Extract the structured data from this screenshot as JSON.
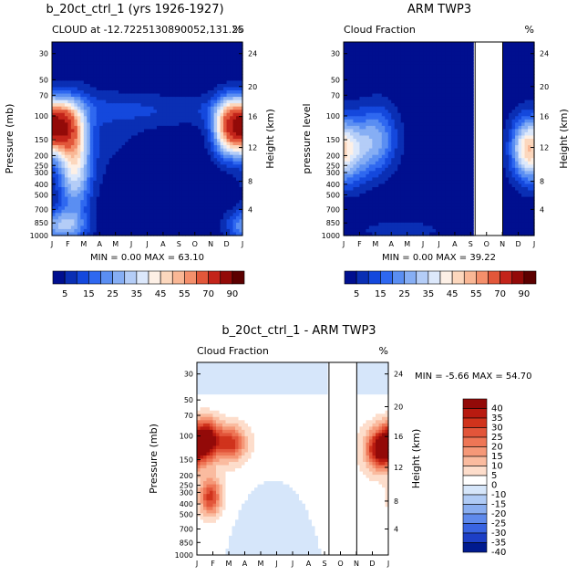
{
  "chart_data": [
    {
      "type": "heatmap",
      "title": "b_20ct_ctrl_1 (yrs 1926-1927)",
      "subtitle_left": "CLOUD at -12.7225130890052,131.25",
      "subtitle_right": "%",
      "ylabel": "Pressure (mb)",
      "ylabel_right": "Height (km)",
      "x_ticks": [
        "J",
        "F",
        "M",
        "A",
        "M",
        "J",
        "J",
        "A",
        "S",
        "O",
        "N",
        "D",
        "J"
      ],
      "y_ticks": [
        "30",
        "50",
        "70",
        "100",
        "150",
        "200",
        "250",
        "300",
        "400",
        "500",
        "700",
        "850",
        "1000"
      ],
      "y_ticks_right": [
        "24",
        "20",
        "16",
        "12",
        "8",
        "4"
      ],
      "stats": {
        "min_label": "MIN =",
        "min": "0.00",
        "max_label": "MAX =",
        "max": "63.10"
      },
      "colorbar": {
        "labels": [
          "5",
          "15",
          "25",
          "35",
          "45",
          "55",
          "70",
          "90"
        ],
        "levels": [
          5,
          10,
          15,
          20,
          25,
          30,
          35,
          40,
          45,
          50,
          55,
          60,
          70,
          80,
          90
        ],
        "colors": [
          "#000f8f",
          "#0a2fb4",
          "#1448dd",
          "#2f68f0",
          "#5a8ef2",
          "#86aef4",
          "#b4cdf7",
          "#dce8fb",
          "#fdf0e6",
          "#fcd7bd",
          "#f9b795",
          "#f48f6b",
          "#e2573a",
          "#c3241a",
          "#930a08",
          "#5c0000"
        ]
      },
      "grid": false
    },
    {
      "type": "heatmap",
      "title": "ARM TWP3",
      "subtitle_left": "Cloud Fraction",
      "subtitle_right": "%",
      "ylabel": "pressure level",
      "ylabel_right": "Height (km)",
      "x_ticks": [
        "J",
        "F",
        "M",
        "A",
        "M",
        "J",
        "J",
        "A",
        "S",
        "O",
        "N",
        "D",
        "J"
      ],
      "y_ticks": [
        "30",
        "50",
        "70",
        "100",
        "150",
        "200",
        "250",
        "300",
        "400",
        "500",
        "700",
        "850",
        "1000"
      ],
      "y_ticks_right": [
        "24",
        "20",
        "16",
        "12",
        "8",
        "4"
      ],
      "stats": {
        "min_label": "MIN =",
        "min": "0.00",
        "max_label": "MAX =",
        "max": "39.22"
      },
      "colorbar": {
        "labels": [
          "5",
          "15",
          "25",
          "35",
          "45",
          "55",
          "70",
          "90"
        ]
      },
      "missing_months": [
        "Oct"
      ],
      "grid": false
    },
    {
      "type": "heatmap",
      "title": "b_20ct_ctrl_1 - ARM TWP3",
      "subtitle_left": "Cloud Fraction",
      "subtitle_right": "%",
      "ylabel": "Pressure (mb)",
      "ylabel_right": "Height (km)",
      "x_ticks": [
        "J",
        "F",
        "M",
        "A",
        "M",
        "J",
        "J",
        "A",
        "S",
        "O",
        "N",
        "D",
        "J"
      ],
      "y_ticks": [
        "30",
        "50",
        "70",
        "100",
        "150",
        "200",
        "250",
        "300",
        "400",
        "500",
        "700",
        "850",
        "1000"
      ],
      "y_ticks_right": [
        "24",
        "20",
        "16",
        "12",
        "8",
        "4"
      ],
      "stats": {
        "min_label": "MIN =",
        "min": "-5.66",
        "max_label": "MAX =",
        "max": "54.70"
      },
      "colorbar": {
        "labels": [
          "40",
          "35",
          "30",
          "25",
          "20",
          "15",
          "10",
          "5",
          "0",
          "-10",
          "-15",
          "-20",
          "-25",
          "-30",
          "-35",
          "-40"
        ],
        "colors": [
          "#930a08",
          "#b81a10",
          "#d0331c",
          "#e2553a",
          "#ee7656",
          "#f59878",
          "#fabb9f",
          "#fdddcb",
          "#ffffff",
          "#d6e6fa",
          "#b0cbf5",
          "#8aaef0",
          "#5f8aec",
          "#3964e2",
          "#1d3fc6",
          "#001a8f"
        ]
      },
      "missing_months": [
        "Oct"
      ],
      "grid": false
    }
  ]
}
